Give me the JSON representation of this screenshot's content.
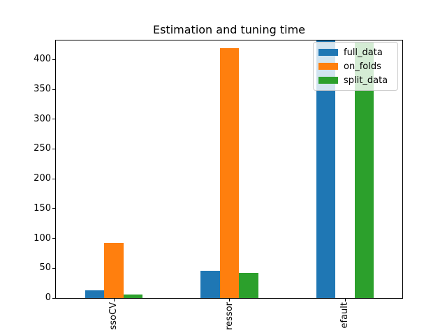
{
  "title": "Estimation and tuning time",
  "legend": {
    "entries": [
      {
        "label": "full_data",
        "color": "#1f77b4"
      },
      {
        "label": "on_folds",
        "color": "#ff7f0e"
      },
      {
        "label": "split_data",
        "color": "#2ca02c"
      }
    ]
  },
  "chart_data": {
    "type": "bar",
    "title": "Estimation and tuning time",
    "categories": [
      "ssoCV",
      "ressor",
      "efault"
    ],
    "series": [
      {
        "name": "full_data",
        "color": "#1f77b4",
        "values": [
          13,
          46,
          432
        ]
      },
      {
        "name": "on_folds",
        "color": "#ff7f0e",
        "values": [
          92,
          419,
          0
        ]
      },
      {
        "name": "split_data",
        "color": "#2ca02c",
        "values": [
          6,
          42,
          428
        ]
      }
    ],
    "xlabel": "",
    "ylabel": "",
    "ylim": [
      0,
      432
    ],
    "yticks": [
      0,
      50,
      100,
      150,
      200,
      250,
      300,
      350,
      400
    ],
    "grid": false,
    "legend_position": "upper right",
    "x_tick_label_rotation_deg": 90,
    "note": "x tick labels are clipped by the figure bottom edge; only the fragments listed in categories are visible"
  }
}
